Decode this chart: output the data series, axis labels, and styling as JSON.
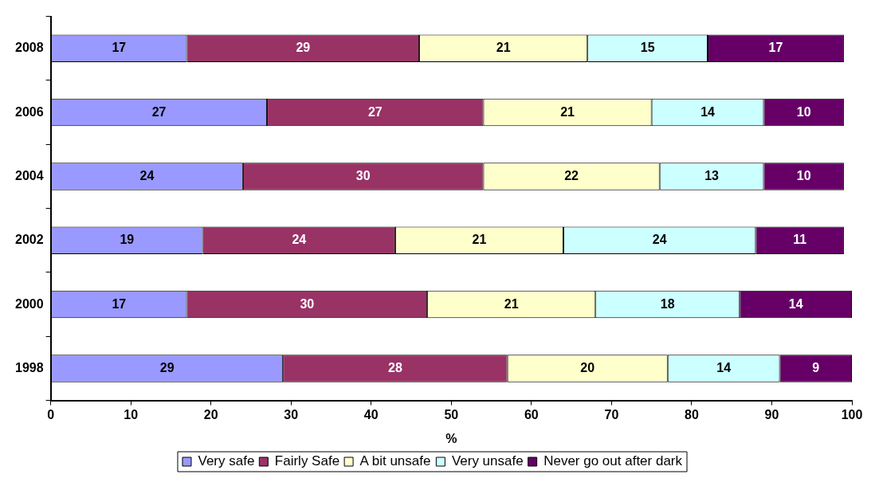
{
  "chart_data": {
    "type": "bar",
    "orientation": "horizontal",
    "stacked": true,
    "xlabel": "%",
    "categories": [
      "2008",
      "2006",
      "2004",
      "2002",
      "2000",
      "1998"
    ],
    "series": [
      {
        "name": "Very safe",
        "color": "#9999ff",
        "values": [
          17,
          27,
          24,
          19,
          17,
          29
        ]
      },
      {
        "name": "Fairly Safe",
        "color": "#993366",
        "values": [
          29,
          27,
          30,
          24,
          30,
          28
        ]
      },
      {
        "name": "A bit unsafe",
        "color": "#ffffcc",
        "values": [
          21,
          21,
          22,
          21,
          21,
          20
        ]
      },
      {
        "name": "Very unsafe",
        "color": "#ccffff",
        "values": [
          15,
          14,
          13,
          24,
          18,
          14
        ]
      },
      {
        "name": "Never go out after dark",
        "color": "#660066",
        "values": [
          17,
          10,
          10,
          11,
          14,
          9
        ]
      }
    ],
    "xlim": [
      0,
      100
    ],
    "xticks": [
      0,
      10,
      20,
      30,
      40,
      50,
      60,
      70,
      80,
      90,
      100
    ],
    "data_labels": true,
    "grid": false,
    "legend": "bottom"
  }
}
